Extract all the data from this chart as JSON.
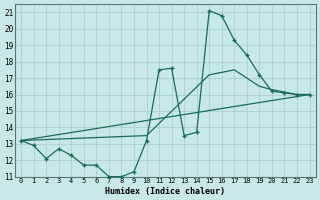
{
  "xlabel": "Humidex (Indice chaleur)",
  "bg_color": "#c8e8e8",
  "grid_color": "#b0cfcf",
  "line_color": "#1a6b5a",
  "xlim": [
    -0.5,
    23.5
  ],
  "ylim": [
    11,
    21.5
  ],
  "yticks": [
    11,
    12,
    13,
    14,
    15,
    16,
    17,
    18,
    19,
    20,
    21
  ],
  "xticks": [
    0,
    1,
    2,
    3,
    4,
    5,
    6,
    7,
    8,
    9,
    10,
    11,
    12,
    13,
    14,
    15,
    16,
    17,
    18,
    19,
    20,
    21,
    22,
    23
  ],
  "line1_x": [
    0,
    1,
    2,
    3,
    4,
    5,
    6,
    7,
    8,
    9,
    10,
    11,
    12,
    13,
    14,
    15,
    16,
    17,
    18,
    19,
    20,
    21,
    22,
    23
  ],
  "line1_y": [
    13.2,
    12.9,
    12.1,
    12.7,
    12.3,
    11.7,
    11.7,
    11.0,
    11.0,
    11.3,
    13.2,
    17.5,
    17.6,
    13.5,
    13.7,
    21.1,
    20.8,
    19.3,
    18.4,
    17.2,
    16.2,
    16.1,
    16.0,
    16.0
  ],
  "line2_x": [
    0,
    10,
    15,
    17,
    19,
    20,
    22,
    23
  ],
  "line2_y": [
    13.2,
    13.5,
    17.2,
    17.5,
    16.5,
    16.3,
    16.0,
    16.0
  ],
  "line3_x": [
    0,
    23
  ],
  "line3_y": [
    13.2,
    16.0
  ]
}
